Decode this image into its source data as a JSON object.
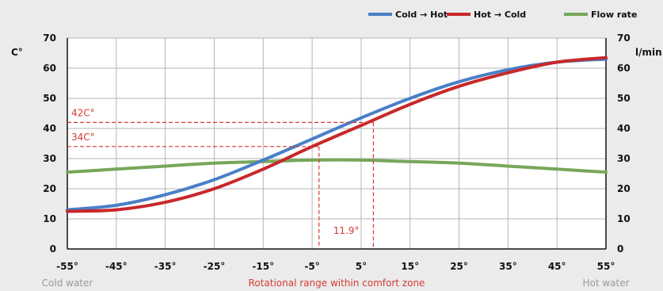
{
  "chart_data": {
    "type": "line",
    "title": "",
    "x_ticks": [
      "-55°",
      "-45°",
      "-35°",
      "-25°",
      "-15°",
      "-5°",
      "5°",
      "15°",
      "25°",
      "35°",
      "45°",
      "55°"
    ],
    "xlim": [
      -55,
      55
    ],
    "ylim": [
      0,
      70
    ],
    "y_ticks": [
      0,
      10,
      20,
      30,
      40,
      50,
      60,
      70
    ],
    "y2lim": [
      0,
      70
    ],
    "y2_ticks": [
      0,
      10,
      20,
      30,
      40,
      50,
      60,
      70
    ],
    "ylabel": "C°",
    "y2label": "l/min",
    "grid": true,
    "legend_position": "top-right",
    "x_footer": {
      "left": "Cold water",
      "center": "Rotational range within comfort zone",
      "right": "Hot water"
    },
    "series": [
      {
        "name": "Cold → Hot",
        "color": "#4a7fc8",
        "axis": "left",
        "x": [
          -55,
          -45,
          -35,
          -25,
          -15,
          -5,
          5,
          15,
          25,
          35,
          45,
          55
        ],
        "y": [
          13,
          14.5,
          18,
          23,
          29.5,
          36.5,
          43.5,
          50,
          55.5,
          59.5,
          62,
          63
        ]
      },
      {
        "name": "Hot → Cold",
        "color": "#c8282a",
        "axis": "left",
        "x": [
          -55,
          -45,
          -35,
          -25,
          -15,
          -5,
          5,
          15,
          25,
          35,
          45,
          55
        ],
        "y": [
          12.5,
          13,
          15.5,
          20,
          26.5,
          34,
          41,
          48,
          54,
          58.5,
          62,
          63.5
        ]
      },
      {
        "name": "Flow rate",
        "color": "#77a75a",
        "axis": "right",
        "x": [
          -55,
          -45,
          -35,
          -25,
          -15,
          -5,
          5,
          15,
          25,
          35,
          45,
          55
        ],
        "y": [
          25.5,
          26.5,
          27.5,
          28.5,
          29,
          29.5,
          29.5,
          29,
          28.5,
          27.5,
          26.5,
          25.5
        ]
      }
    ],
    "annotations": {
      "color": "#d43a33",
      "h_lines": [
        {
          "label": "42C°",
          "y": 42,
          "x_end": 7.5
        },
        {
          "label": "34C°",
          "y": 34,
          "x_end": -3.6
        }
      ],
      "v_lines": [
        {
          "x": -3.6,
          "y_top": 34
        },
        {
          "x": 7.5,
          "y_top": 42
        }
      ],
      "span_label": "11.9°"
    }
  }
}
